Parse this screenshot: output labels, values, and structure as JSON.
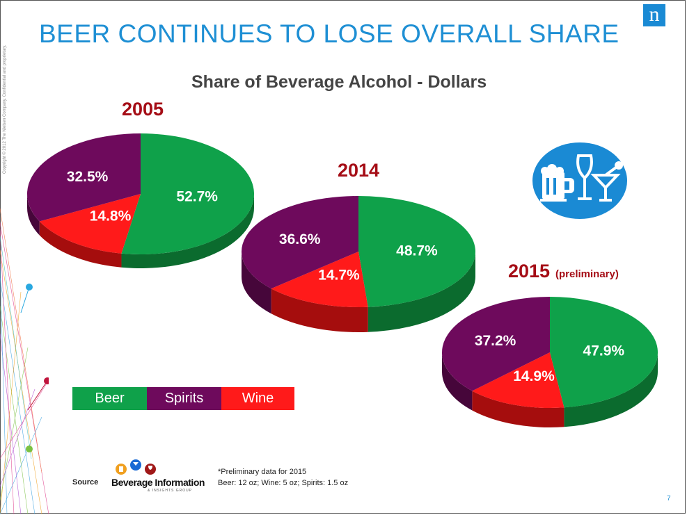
{
  "slide": {
    "title": "BEER CONTINUES TO LOSE OVERALL SHARE",
    "copyright": "Copyright © 2012 The Nielsen Company. Confidential and proprietary.",
    "logo_letter": "n",
    "page_number": "7"
  },
  "chart_data": [
    {
      "type": "pie",
      "title": "Share of Beverage Alcohol - Dollars",
      "chart_label": "2005",
      "categories": [
        "Beer",
        "Spirits",
        "Wine"
      ],
      "values": [
        52.7,
        32.5,
        14.8
      ],
      "labels": [
        "52.7%",
        "32.5%",
        "14.8%"
      ]
    },
    {
      "type": "pie",
      "chart_label": "2014",
      "categories": [
        "Beer",
        "Spirits",
        "Wine"
      ],
      "values": [
        48.7,
        36.6,
        14.7
      ],
      "labels": [
        "48.7%",
        "36.6%",
        "14.7%"
      ]
    },
    {
      "type": "pie",
      "chart_label": "2015",
      "chart_sublabel": "(preliminary)",
      "categories": [
        "Beer",
        "Spirits",
        "Wine"
      ],
      "values": [
        47.9,
        37.2,
        14.9
      ],
      "labels": [
        "47.9%",
        "37.2%",
        "14.9%"
      ]
    }
  ],
  "legend": [
    {
      "label": "Beer",
      "color": "#0fa14a"
    },
    {
      "label": "Spirits",
      "color": "#6e0a5c"
    },
    {
      "label": "Wine",
      "color": "#ff1a1a"
    }
  ],
  "colors": {
    "beer_side": "#0b6b2e",
    "spirits_side": "#46063a",
    "wine_side": "#a50d0d",
    "title_blue": "#1e8fd4",
    "year_red": "#a50d16"
  },
  "source": {
    "label": "Source",
    "logo_text": "Beverage Information",
    "logo_subtext": "& INSIGHTS GROUP",
    "note1": "*Preliminary data for 2015",
    "note2": "Beer: 12 oz; Wine: 5 oz; Spirits: 1.5 oz"
  },
  "icons": [
    "beer-mug-icon",
    "wine-glass-icon",
    "martini-glass-icon"
  ]
}
